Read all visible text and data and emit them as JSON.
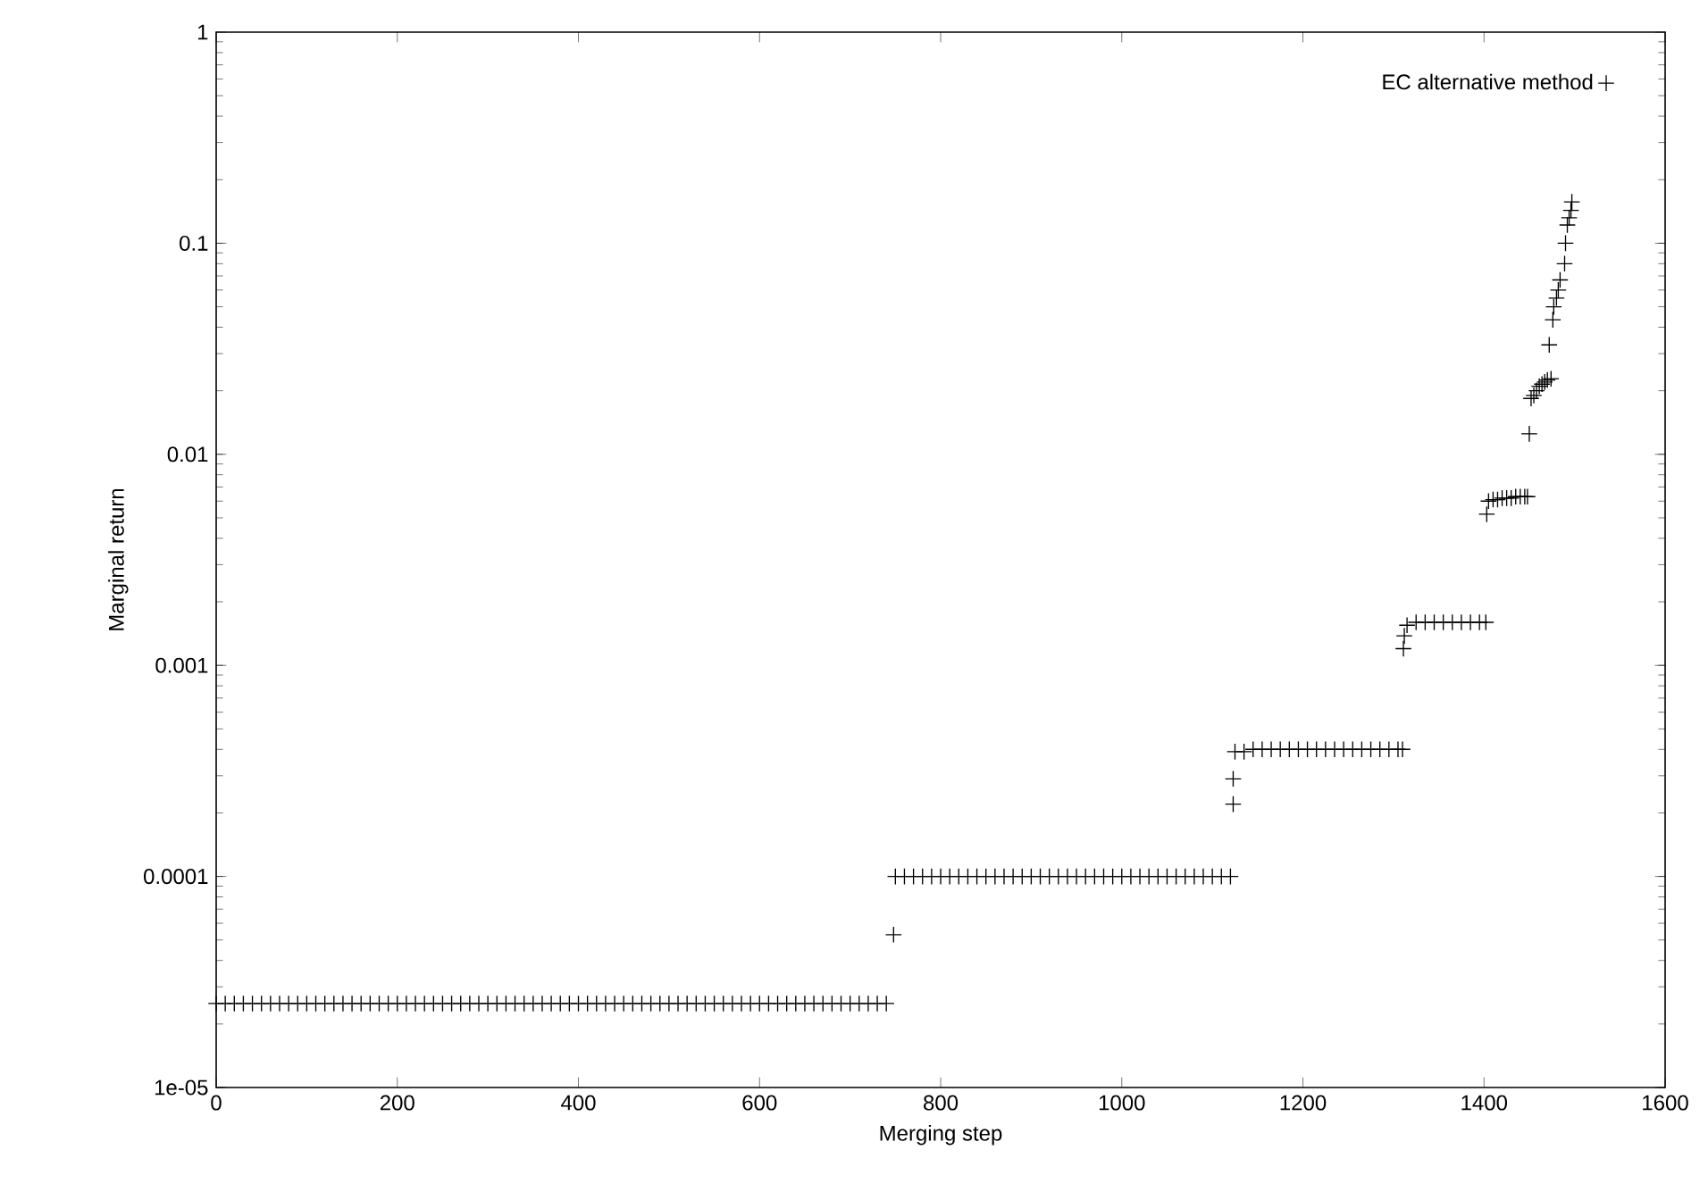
{
  "chart_data": {
    "type": "scatter",
    "xlabel": "Merging step",
    "ylabel": "Marginal return",
    "xlim": [
      0,
      1600
    ],
    "ylim": [
      1e-05,
      1
    ],
    "log": "y",
    "legend": "top right",
    "marker": "cross",
    "grid": false,
    "xticks": [
      0,
      200,
      400,
      600,
      800,
      1000,
      1200,
      1400,
      1600
    ],
    "yticks": [
      {
        "value": 1e-05,
        "label": "1e-05"
      },
      {
        "value": 0.0001,
        "label": "0.0001"
      },
      {
        "value": 0.001,
        "label": "0.001"
      },
      {
        "value": 0.01,
        "label": "0.01"
      },
      {
        "value": 0.1,
        "label": "0.1"
      },
      {
        "value": 1,
        "label": "1"
      }
    ],
    "series": [
      {
        "name": "EC alternative method",
        "color": "#000000",
        "x": [
          0,
          10,
          20,
          30,
          40,
          50,
          60,
          70,
          80,
          90,
          100,
          110,
          120,
          130,
          140,
          150,
          160,
          170,
          180,
          190,
          200,
          210,
          220,
          230,
          240,
          250,
          260,
          270,
          280,
          290,
          300,
          310,
          320,
          330,
          340,
          350,
          360,
          370,
          380,
          390,
          400,
          410,
          420,
          430,
          440,
          450,
          460,
          470,
          480,
          490,
          500,
          510,
          520,
          530,
          540,
          550,
          560,
          570,
          580,
          590,
          600,
          610,
          620,
          630,
          640,
          650,
          660,
          670,
          680,
          690,
          700,
          710,
          720,
          730,
          740,
          748,
          750,
          760,
          770,
          780,
          790,
          800,
          810,
          820,
          830,
          840,
          850,
          860,
          870,
          880,
          890,
          900,
          910,
          920,
          930,
          940,
          950,
          960,
          970,
          980,
          990,
          1000,
          1010,
          1020,
          1030,
          1040,
          1050,
          1060,
          1070,
          1080,
          1090,
          1100,
          1110,
          1120,
          1123,
          1123,
          1125,
          1135,
          1145,
          1155,
          1165,
          1175,
          1185,
          1195,
          1205,
          1215,
          1225,
          1235,
          1245,
          1255,
          1265,
          1275,
          1285,
          1295,
          1305,
          1310,
          1311,
          1312,
          1315,
          1325,
          1335,
          1345,
          1355,
          1365,
          1375,
          1385,
          1395,
          1402,
          1403,
          1405,
          1410,
          1415,
          1420,
          1425,
          1430,
          1435,
          1440,
          1445,
          1448,
          1450,
          1452,
          1455,
          1458,
          1461,
          1464,
          1467,
          1470,
          1474,
          1472,
          1476,
          1477,
          1480,
          1482,
          1484,
          1489,
          1490,
          1492,
          1494,
          1496,
          1497
        ],
        "values": [
          2.5e-05,
          2.5e-05,
          2.5e-05,
          2.5e-05,
          2.5e-05,
          2.5e-05,
          2.5e-05,
          2.5e-05,
          2.5e-05,
          2.5e-05,
          2.5e-05,
          2.5e-05,
          2.5e-05,
          2.5e-05,
          2.5e-05,
          2.5e-05,
          2.5e-05,
          2.5e-05,
          2.5e-05,
          2.5e-05,
          2.5e-05,
          2.5e-05,
          2.5e-05,
          2.5e-05,
          2.5e-05,
          2.5e-05,
          2.5e-05,
          2.5e-05,
          2.5e-05,
          2.5e-05,
          2.5e-05,
          2.5e-05,
          2.5e-05,
          2.5e-05,
          2.5e-05,
          2.5e-05,
          2.5e-05,
          2.5e-05,
          2.5e-05,
          2.5e-05,
          2.5e-05,
          2.5e-05,
          2.5e-05,
          2.5e-05,
          2.5e-05,
          2.5e-05,
          2.5e-05,
          2.5e-05,
          2.5e-05,
          2.5e-05,
          2.5e-05,
          2.5e-05,
          2.5e-05,
          2.5e-05,
          2.5e-05,
          2.5e-05,
          2.5e-05,
          2.5e-05,
          2.5e-05,
          2.5e-05,
          2.5e-05,
          2.5e-05,
          2.5e-05,
          2.5e-05,
          2.5e-05,
          2.5e-05,
          2.5e-05,
          2.5e-05,
          2.5e-05,
          2.5e-05,
          2.5e-05,
          2.5e-05,
          2.5e-05,
          2.5e-05,
          2.5e-05,
          5.3e-05,
          0.0001,
          0.0001,
          0.0001,
          0.0001,
          0.0001,
          0.0001,
          0.0001,
          0.0001,
          0.0001,
          0.0001,
          0.0001,
          0.0001,
          0.0001,
          0.0001,
          0.0001,
          0.0001,
          0.0001,
          0.0001,
          0.0001,
          0.0001,
          0.0001,
          0.0001,
          0.0001,
          0.0001,
          0.0001,
          0.0001,
          0.0001,
          0.0001,
          0.0001,
          0.0001,
          0.0001,
          0.0001,
          0.0001,
          0.0001,
          0.0001,
          0.0001,
          0.0001,
          0.0001,
          0.00029,
          0.00022,
          0.00039,
          0.00039,
          0.0004,
          0.0004,
          0.0004,
          0.0004,
          0.0004,
          0.0004,
          0.0004,
          0.0004,
          0.0004,
          0.0004,
          0.0004,
          0.0004,
          0.0004,
          0.0004,
          0.0004,
          0.0004,
          0.0004,
          0.0004,
          0.0012,
          0.00138,
          0.00155,
          0.0016,
          0.0016,
          0.0016,
          0.0016,
          0.0016,
          0.0016,
          0.0016,
          0.0016,
          0.0016,
          0.0052,
          0.006,
          0.0061,
          0.0061,
          0.0062,
          0.0062,
          0.0062,
          0.0063,
          0.0063,
          0.0063,
          0.0063,
          0.0125,
          0.0184,
          0.019,
          0.02,
          0.021,
          0.0215,
          0.022,
          0.0225,
          0.0228,
          0.033,
          0.0434,
          0.05,
          0.055,
          0.06,
          0.067,
          0.08,
          0.1,
          0.122,
          0.132,
          0.143,
          0.157
        ]
      }
    ]
  }
}
